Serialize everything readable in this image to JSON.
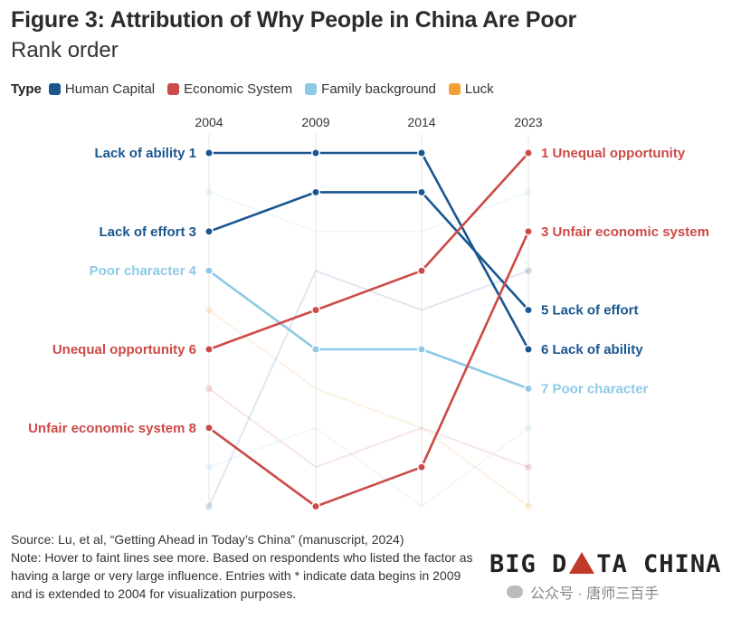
{
  "header": {
    "title": "Figure 3: Attribution of Why People in China Are Poor",
    "subtitle": "Rank order"
  },
  "legend": {
    "label": "Type",
    "items": [
      {
        "name": "Human Capital",
        "color": "#1a5690"
      },
      {
        "name": "Economic System",
        "color": "#cc4a47"
      },
      {
        "name": "Family background",
        "color": "#8ecae6"
      },
      {
        "name": "Luck",
        "color": "#f2a035"
      }
    ]
  },
  "chart_data": {
    "type": "line",
    "title": "Figure 3: Attribution of Why People in China Are Poor",
    "subtitle": "Rank order",
    "x": [
      "2004",
      "2009",
      "2014",
      "2023"
    ],
    "y_axis": "rank",
    "ylim": [
      1,
      10
    ],
    "y_reversed": true,
    "grid": false,
    "legend_position": "top-left",
    "series": [
      {
        "name": "Lack of ability",
        "type": "Human Capital",
        "values": [
          1,
          1,
          1,
          6
        ],
        "highlighted": true,
        "start_label": "Lack of ability 1",
        "end_label": "6 Lack of ability"
      },
      {
        "name": "Lack of effort",
        "type": "Human Capital",
        "values": [
          3,
          2,
          2,
          5
        ],
        "highlighted": true,
        "start_label": "Lack of effort 3",
        "end_label": "5 Lack of effort"
      },
      {
        "name": "Poor character",
        "type": "Family background",
        "values": [
          4,
          6,
          6,
          7
        ],
        "highlighted": true,
        "start_label": "Poor character 4",
        "end_label": "7 Poor character"
      },
      {
        "name": "Unequal opportunity",
        "type": "Economic System",
        "values": [
          6,
          5,
          4,
          1
        ],
        "highlighted": true,
        "start_label": "Unequal opportunity 6",
        "end_label": "1 Unequal opportunity"
      },
      {
        "name": "Unfair economic system",
        "type": "Economic System",
        "values": [
          8,
          10,
          9,
          3
        ],
        "highlighted": true,
        "start_label": "Unfair economic system 8",
        "end_label": "3 Unfair economic system"
      },
      {
        "values": [
          2,
          3,
          3,
          2
        ],
        "type": "Family background",
        "highlighted": false
      },
      {
        "values": [
          5,
          7,
          8,
          10
        ],
        "type": "Luck",
        "highlighted": false
      },
      {
        "values": [
          7,
          9,
          8,
          9
        ],
        "type": "Economic System",
        "highlighted": false
      },
      {
        "values": [
          9,
          8,
          10,
          8
        ],
        "type": "Family background",
        "highlighted": false
      },
      {
        "values": [
          10,
          4,
          5,
          4
        ],
        "type": "Human Capital",
        "highlighted": false
      }
    ]
  },
  "footer": {
    "source": "Source: Lu, et al, “Getting Ahead in Today’s China” (manuscript, 2024)",
    "note": "Note: Hover to faint lines see more. Based on respondents who listed the factor as having a large or very large influence. Entries with * indicate data begins in 2009 and is extended to 2004 for visualization purposes."
  },
  "brand": {
    "left": "BIG D",
    "right": "TA CHINA"
  },
  "watermark": "公众号 · 唐师三百手"
}
